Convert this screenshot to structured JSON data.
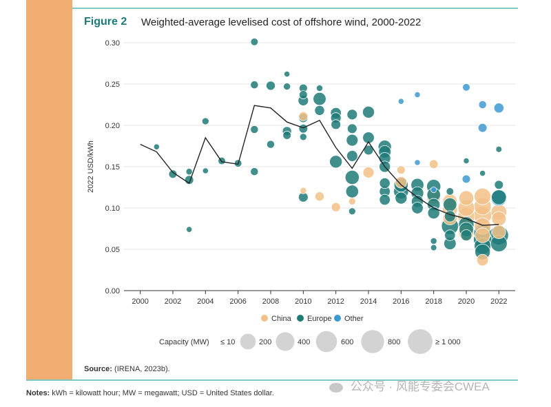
{
  "figure": {
    "label": "Figure 2",
    "title": "Weighted-average levelised cost of offshore wind, 2000-2022"
  },
  "source": {
    "label": "Source:",
    "text": "(IRENA, 2023b)."
  },
  "notes": {
    "label": "Notes:",
    "text": "kWh = kilowatt hour; MW = megawatt; USD = United States dollar."
  },
  "watermark": {
    "text": "公众号 · 风能专委会CWEA",
    "icon": "wechat-icon"
  },
  "colors": {
    "band": "#f0ae72",
    "rule": "#7fc8c8",
    "accent": "#1a7a78",
    "China": "#f2c187",
    "Europe": "#1f7b78",
    "Other": "#3d9ad1",
    "line": "#222222",
    "capacity_legend": "#d3d3d3"
  },
  "chart_data": {
    "type": "scatter",
    "ylabel": "2022 USD/kWh",
    "xlabel": "",
    "xlim": [
      2000,
      2022
    ],
    "ylim": [
      0,
      0.3
    ],
    "x_ticks": [
      "2000",
      "2002",
      "2004",
      "2006",
      "2008",
      "2010",
      "2012",
      "2014",
      "2016",
      "2018",
      "2020",
      "2022"
    ],
    "y_ticks": [
      "0.00",
      "0.05",
      "0.10",
      "0.15",
      "0.20",
      "0.25",
      "0.30"
    ],
    "legend": {
      "placement": "bottom",
      "entries": [
        "China",
        "Europe",
        "Other"
      ]
    },
    "capacity_legend": {
      "title": "Capacity (MW)",
      "labels": [
        "≤ 10",
        "200",
        "400",
        "600",
        "800",
        "≥ 1 000"
      ],
      "values": [
        10,
        200,
        400,
        600,
        800,
        1000
      ]
    },
    "average_line": [
      {
        "x": 2000,
        "y": 0.177
      },
      {
        "x": 2001,
        "y": 0.168
      },
      {
        "x": 2002,
        "y": 0.143
      },
      {
        "x": 2003,
        "y": 0.13
      },
      {
        "x": 2004,
        "y": 0.185
      },
      {
        "x": 2005,
        "y": 0.156
      },
      {
        "x": 2006,
        "y": 0.153
      },
      {
        "x": 2007,
        "y": 0.224
      },
      {
        "x": 2008,
        "y": 0.221
      },
      {
        "x": 2009,
        "y": 0.204
      },
      {
        "x": 2010,
        "y": 0.197
      },
      {
        "x": 2011,
        "y": 0.206
      },
      {
        "x": 2012,
        "y": 0.173
      },
      {
        "x": 2013,
        "y": 0.148
      },
      {
        "x": 2014,
        "y": 0.18
      },
      {
        "x": 2015,
        "y": 0.15
      },
      {
        "x": 2016,
        "y": 0.128
      },
      {
        "x": 2017,
        "y": 0.113
      },
      {
        "x": 2018,
        "y": 0.1
      },
      {
        "x": 2019,
        "y": 0.092
      },
      {
        "x": 2020,
        "y": 0.087
      },
      {
        "x": 2021,
        "y": 0.079
      },
      {
        "x": 2022,
        "y": 0.08
      }
    ],
    "series": [
      {
        "name": "Europe",
        "points": [
          {
            "x": 2001,
            "y": 0.174,
            "mw": 10
          },
          {
            "x": 2002,
            "y": 0.141,
            "mw": 60
          },
          {
            "x": 2003,
            "y": 0.144,
            "mw": 20
          },
          {
            "x": 2003,
            "y": 0.134,
            "mw": 80
          },
          {
            "x": 2003,
            "y": 0.074,
            "mw": 10
          },
          {
            "x": 2004,
            "y": 0.205,
            "mw": 30
          },
          {
            "x": 2004,
            "y": 0.145,
            "mw": 10
          },
          {
            "x": 2005,
            "y": 0.157,
            "mw": 40
          },
          {
            "x": 2006,
            "y": 0.154,
            "mw": 40
          },
          {
            "x": 2007,
            "y": 0.301,
            "mw": 40
          },
          {
            "x": 2007,
            "y": 0.249,
            "mw": 50
          },
          {
            "x": 2007,
            "y": 0.195,
            "mw": 50
          },
          {
            "x": 2007,
            "y": 0.144,
            "mw": 50
          },
          {
            "x": 2008,
            "y": 0.248,
            "mw": 90
          },
          {
            "x": 2008,
            "y": 0.177,
            "mw": 50
          },
          {
            "x": 2009,
            "y": 0.262,
            "mw": 10
          },
          {
            "x": 2009,
            "y": 0.247,
            "mw": 30
          },
          {
            "x": 2009,
            "y": 0.193,
            "mw": 90
          },
          {
            "x": 2009,
            "y": 0.188,
            "mw": 60
          },
          {
            "x": 2010,
            "y": 0.245,
            "mw": 60
          },
          {
            "x": 2010,
            "y": 0.237,
            "mw": 60
          },
          {
            "x": 2010,
            "y": 0.23,
            "mw": 140
          },
          {
            "x": 2010,
            "y": 0.209,
            "mw": 90
          },
          {
            "x": 2010,
            "y": 0.196,
            "mw": 80
          },
          {
            "x": 2010,
            "y": 0.186,
            "mw": 30
          },
          {
            "x": 2010,
            "y": 0.113,
            "mw": 110
          },
          {
            "x": 2011,
            "y": 0.245,
            "mw": 20
          },
          {
            "x": 2011,
            "y": 0.232,
            "mw": 280
          },
          {
            "x": 2011,
            "y": 0.218,
            "mw": 120
          },
          {
            "x": 2012,
            "y": 0.215,
            "mw": 160
          },
          {
            "x": 2012,
            "y": 0.209,
            "mw": 140
          },
          {
            "x": 2012,
            "y": 0.201,
            "mw": 110
          },
          {
            "x": 2012,
            "y": 0.156,
            "mw": 260
          },
          {
            "x": 2013,
            "y": 0.213,
            "mw": 140
          },
          {
            "x": 2013,
            "y": 0.196,
            "mw": 110
          },
          {
            "x": 2013,
            "y": 0.182,
            "mw": 210
          },
          {
            "x": 2013,
            "y": 0.163,
            "mw": 170
          },
          {
            "x": 2013,
            "y": 0.137,
            "mw": 360
          },
          {
            "x": 2013,
            "y": 0.12,
            "mw": 270
          },
          {
            "x": 2013,
            "y": 0.096,
            "mw": 30
          },
          {
            "x": 2014,
            "y": 0.216,
            "mw": 220
          },
          {
            "x": 2014,
            "y": 0.185,
            "mw": 200
          },
          {
            "x": 2014,
            "y": 0.17,
            "mw": 110
          },
          {
            "x": 2015,
            "y": 0.174,
            "mw": 300
          },
          {
            "x": 2015,
            "y": 0.168,
            "mw": 250
          },
          {
            "x": 2015,
            "y": 0.16,
            "mw": 210
          },
          {
            "x": 2015,
            "y": 0.15,
            "mw": 180
          },
          {
            "x": 2015,
            "y": 0.13,
            "mw": 150
          },
          {
            "x": 2015,
            "y": 0.12,
            "mw": 160
          },
          {
            "x": 2015,
            "y": 0.11,
            "mw": 160
          },
          {
            "x": 2016,
            "y": 0.128,
            "mw": 360
          },
          {
            "x": 2016,
            "y": 0.12,
            "mw": 420
          },
          {
            "x": 2016,
            "y": 0.112,
            "mw": 220
          },
          {
            "x": 2017,
            "y": 0.128,
            "mw": 280
          },
          {
            "x": 2017,
            "y": 0.118,
            "mw": 260
          },
          {
            "x": 2017,
            "y": 0.108,
            "mw": 220
          },
          {
            "x": 2017,
            "y": 0.1,
            "mw": 200
          },
          {
            "x": 2018,
            "y": 0.126,
            "mw": 360
          },
          {
            "x": 2018,
            "y": 0.116,
            "mw": 320
          },
          {
            "x": 2018,
            "y": 0.104,
            "mw": 260
          },
          {
            "x": 2018,
            "y": 0.094,
            "mw": 220
          },
          {
            "x": 2018,
            "y": 0.06,
            "mw": 20
          },
          {
            "x": 2018,
            "y": 0.052,
            "mw": 15
          },
          {
            "x": 2019,
            "y": 0.12,
            "mw": 40
          },
          {
            "x": 2019,
            "y": 0.104,
            "mw": 320
          },
          {
            "x": 2019,
            "y": 0.09,
            "mw": 180
          },
          {
            "x": 2019,
            "y": 0.078,
            "mw": 600
          },
          {
            "x": 2019,
            "y": 0.067,
            "mw": 160
          },
          {
            "x": 2019,
            "y": 0.057,
            "mw": 240
          },
          {
            "x": 2020,
            "y": 0.08,
            "mw": 460
          },
          {
            "x": 2020,
            "y": 0.074,
            "mw": 380
          },
          {
            "x": 2020,
            "y": 0.067,
            "mw": 180
          },
          {
            "x": 2020,
            "y": 0.157,
            "mw": 10
          },
          {
            "x": 2021,
            "y": 0.142,
            "mw": 10
          },
          {
            "x": 2021,
            "y": 0.07,
            "mw": 640
          },
          {
            "x": 2021,
            "y": 0.062,
            "mw": 720
          },
          {
            "x": 2021,
            "y": 0.054,
            "mw": 560
          },
          {
            "x": 2021,
            "y": 0.047,
            "mw": 460
          },
          {
            "x": 2022,
            "y": 0.171,
            "mw": 15
          },
          {
            "x": 2022,
            "y": 0.128,
            "mw": 80
          },
          {
            "x": 2022,
            "y": 0.113,
            "mw": 420
          },
          {
            "x": 2022,
            "y": 0.067,
            "mw": 820
          },
          {
            "x": 2022,
            "y": 0.057,
            "mw": 560
          }
        ]
      },
      {
        "name": "China",
        "points": [
          {
            "x": 2010,
            "y": 0.211,
            "mw": 90
          },
          {
            "x": 2010,
            "y": 0.121,
            "mw": 20
          },
          {
            "x": 2011,
            "y": 0.114,
            "mw": 90
          },
          {
            "x": 2012,
            "y": 0.101,
            "mw": 90
          },
          {
            "x": 2013,
            "y": 0.108,
            "mw": 30
          },
          {
            "x": 2014,
            "y": 0.143,
            "mw": 170
          },
          {
            "x": 2016,
            "y": 0.146,
            "mw": 60
          },
          {
            "x": 2016,
            "y": 0.131,
            "mw": 200
          },
          {
            "x": 2018,
            "y": 0.153,
            "mw": 80
          },
          {
            "x": 2018,
            "y": 0.113,
            "mw": 340
          },
          {
            "x": 2019,
            "y": 0.108,
            "mw": 380
          },
          {
            "x": 2019,
            "y": 0.098,
            "mw": 420
          },
          {
            "x": 2019,
            "y": 0.088,
            "mw": 360
          },
          {
            "x": 2020,
            "y": 0.112,
            "mw": 400
          },
          {
            "x": 2020,
            "y": 0.1,
            "mw": 560
          },
          {
            "x": 2020,
            "y": 0.09,
            "mw": 600
          },
          {
            "x": 2020,
            "y": 0.07,
            "mw": 440
          },
          {
            "x": 2021,
            "y": 0.114,
            "mw": 560
          },
          {
            "x": 2021,
            "y": 0.102,
            "mw": 620
          },
          {
            "x": 2021,
            "y": 0.091,
            "mw": 700
          },
          {
            "x": 2021,
            "y": 0.078,
            "mw": 560
          },
          {
            "x": 2021,
            "y": 0.067,
            "mw": 420
          },
          {
            "x": 2021,
            "y": 0.037,
            "mw": 200
          },
          {
            "x": 2022,
            "y": 0.095,
            "mw": 480
          },
          {
            "x": 2022,
            "y": 0.087,
            "mw": 380
          },
          {
            "x": 2022,
            "y": 0.071,
            "mw": 320
          }
        ]
      },
      {
        "name": "Other",
        "points": [
          {
            "x": 2016,
            "y": 0.229,
            "mw": 10
          },
          {
            "x": 2017,
            "y": 0.237,
            "mw": 10
          },
          {
            "x": 2017,
            "y": 0.155,
            "mw": 10
          },
          {
            "x": 2018,
            "y": 0.122,
            "mw": 10
          },
          {
            "x": 2020,
            "y": 0.246,
            "mw": 40
          },
          {
            "x": 2020,
            "y": 0.135,
            "mw": 60
          },
          {
            "x": 2021,
            "y": 0.225,
            "mw": 50
          },
          {
            "x": 2021,
            "y": 0.197,
            "mw": 80
          },
          {
            "x": 2022,
            "y": 0.221,
            "mw": 120
          },
          {
            "x": 2022,
            "y": 0.112,
            "mw": 480
          }
        ]
      }
    ]
  }
}
